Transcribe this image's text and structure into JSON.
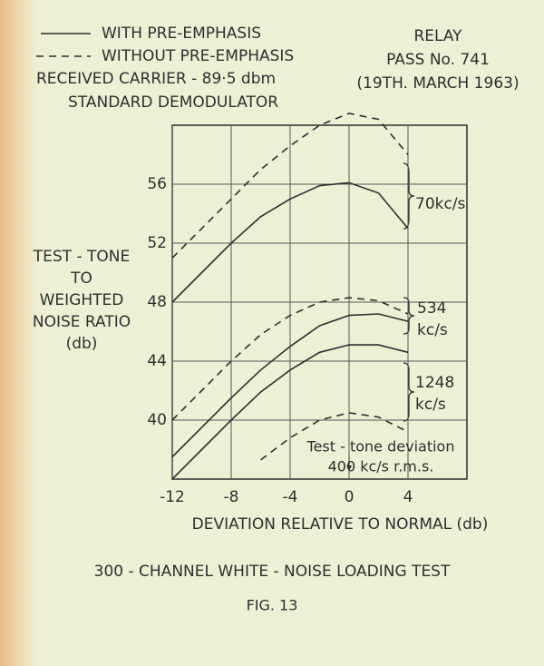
{
  "chart_data": {
    "type": "line",
    "legend": [
      {
        "label": "WITH PRE-EMPHASIS",
        "dash": "solid"
      },
      {
        "label": "WITHOUT PRE-EMPHASIS",
        "dash": "dashed"
      }
    ],
    "notes_left": [
      "RECEIVED CARRIER - 89·5 dbm",
      "STANDARD DEMODULATOR"
    ],
    "notes_right": [
      "RELAY",
      "PASS No. 741",
      "(19TH. MARCH 1963)"
    ],
    "ylabel": [
      "TEST - TONE",
      "TO",
      "WEIGHTED",
      "NOISE RATIO",
      "(db)"
    ],
    "xlabel": "DEVIATION RELATIVE TO NORMAL (db)",
    "title": "300 - CHANNEL WHITE - NOISE LOADING TEST",
    "caption": "FIG. 13",
    "annotation": [
      "Test - tone deviation",
      "400 kc/s  r.m.s."
    ],
    "annotation_x": 0,
    "color": "#2e2e2e",
    "grid": true,
    "xlim": [
      -12,
      8
    ],
    "xticks": [
      -12,
      -8,
      -4,
      0,
      4
    ],
    "ylim": [
      36,
      60
    ],
    "yticks": [
      40,
      44,
      48,
      52,
      56
    ],
    "x": [
      -12,
      -10,
      -8,
      -6,
      -4,
      -2,
      0,
      2,
      4
    ],
    "series": [
      {
        "name": "70kc/s",
        "with": [
          48,
          50,
          52,
          53.8,
          55,
          55.9,
          56.1,
          55.4,
          53
        ],
        "without": [
          51,
          53,
          55,
          57,
          58.6,
          60,
          60.8,
          60.4,
          58
        ]
      },
      {
        "name": "534 kc/s",
        "with": [
          37.5,
          39.5,
          41.5,
          43.4,
          45,
          46.4,
          47.1,
          47.2,
          46.7
        ],
        "without": [
          40,
          42,
          44,
          45.8,
          47.1,
          48,
          48.3,
          48.1,
          47.2
        ]
      },
      {
        "name": "1248 kc/s",
        "with": [
          36,
          38,
          40,
          41.9,
          43.4,
          44.6,
          45.1,
          45.1,
          44.6
        ],
        "without": [
          null,
          null,
          null,
          37.3,
          38.8,
          40,
          40.5,
          40.2,
          39.2
        ]
      }
    ]
  }
}
